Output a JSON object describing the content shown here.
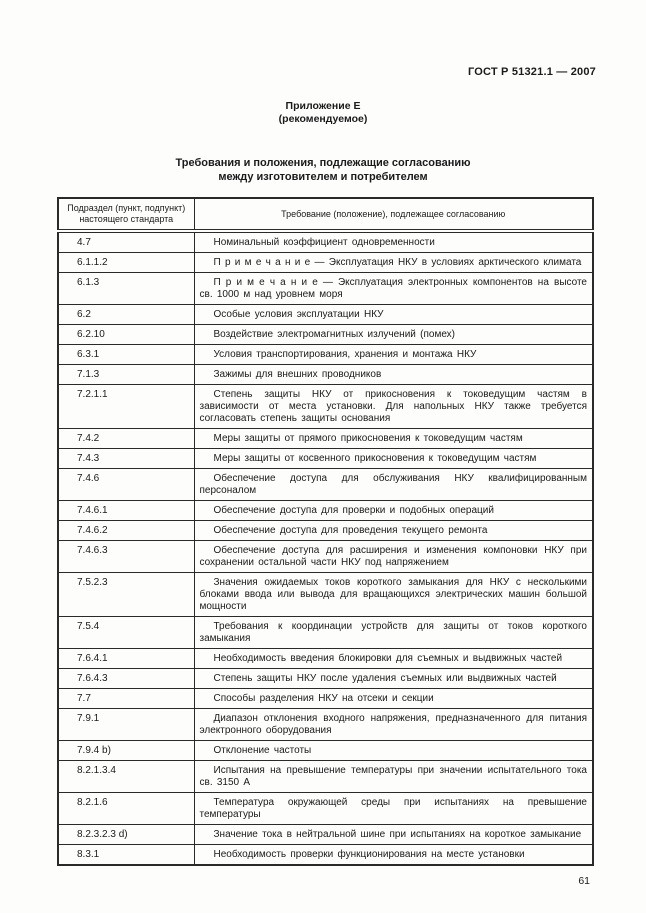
{
  "page": {
    "header_right": "ГОСТ Р 51321.1 — 2007",
    "appendix_title": "Приложение Е",
    "appendix_subtitle": "(рекомендуемое)",
    "title_line1": "Требования и положения, подлежащие согласованию",
    "title_line2": "между изготовителем и потребителем",
    "page_number": "61"
  },
  "table": {
    "col1_header": "Подраздел (пункт, подпункт) настоящего стандарта",
    "col2_header": "Требование (положение), подлежащее согласованию",
    "rows": [
      {
        "clause": "4.7",
        "text": "Номинальный коэффициент одновременности"
      },
      {
        "clause": "6.1.1.2",
        "text": "П р и м е ч а н и е — Эксплуатация НКУ в условиях арктического климата"
      },
      {
        "clause": "6.1.3",
        "text": "П р и м е ч а н и е — Эксплуатация электронных компонентов на высоте св. 1000 м над уровнем моря"
      },
      {
        "clause": "6.2",
        "text": "Особые условия эксплуатации НКУ"
      },
      {
        "clause": "6.2.10",
        "text": "Воздействие электромагнитных излучений (помех)"
      },
      {
        "clause": "6.3.1",
        "text": "Условия транспортирования, хранения и монтажа НКУ"
      },
      {
        "clause": "7.1.3",
        "text": "Зажимы для внешних проводников"
      },
      {
        "clause": "7.2.1.1",
        "text": "Степень защиты НКУ от прикосновения к токоведущим частям в зависимости от места установки. Для напольных НКУ также требуется согласовать степень защиты основания"
      },
      {
        "clause": "7.4.2",
        "text": "Меры защиты от прямого прикосновения к токоведущим частям"
      },
      {
        "clause": "7.4.3",
        "text": "Меры защиты от косвенного прикосновения к токоведущим частям"
      },
      {
        "clause": "7.4.6",
        "text": "Обеспечение доступа для обслуживания НКУ квалифицированным персоналом"
      },
      {
        "clause": "7.4.6.1",
        "text": "Обеспечение доступа для проверки и подобных операций"
      },
      {
        "clause": "7.4.6.2",
        "text": "Обеспечение доступа для проведения текущего ремонта"
      },
      {
        "clause": "7.4.6.3",
        "text": "Обеспечение доступа для расширения и изменения компоновки НКУ при сохранении остальной части НКУ под напряжением"
      },
      {
        "clause": "7.5.2.3",
        "text": "Значения ожидаемых токов короткого замыкания для НКУ с несколькими блоками ввода или вывода для вращающихся электрических машин большой мощности"
      },
      {
        "clause": "7.5.4",
        "text": "Требования к координации устройств для защиты от токов короткого замыкания"
      },
      {
        "clause": "7.6.4.1",
        "text": "Необходимость введения блокировки для съемных и выдвижных частей"
      },
      {
        "clause": "7.6.4.3",
        "text": "Степень защиты НКУ после удаления съемных или выдвижных частей"
      },
      {
        "clause": "7.7",
        "text": "Способы разделения НКУ на отсеки и секции"
      },
      {
        "clause": "7.9.1",
        "text": "Диапазон отклонения входного напряжения, предназначенного для питания электронного оборудования"
      },
      {
        "clause": "7.9.4 b)",
        "text": "Отклонение частоты"
      },
      {
        "clause": "8.2.1.3.4",
        "text": "Испытания на превышение температуры при значении испытательного тока св. 3150 А"
      },
      {
        "clause": "8.2.1.6",
        "text": "Температура окружающей среды при испытаниях на превышение температуры"
      },
      {
        "clause": "8.2.3.2.3 d)",
        "text": "Значение тока в нейтральной шине при испытаниях на короткое замыкание"
      },
      {
        "clause": "8.3.1",
        "text": "Необходимость проверки функционирования на месте установки"
      }
    ]
  }
}
